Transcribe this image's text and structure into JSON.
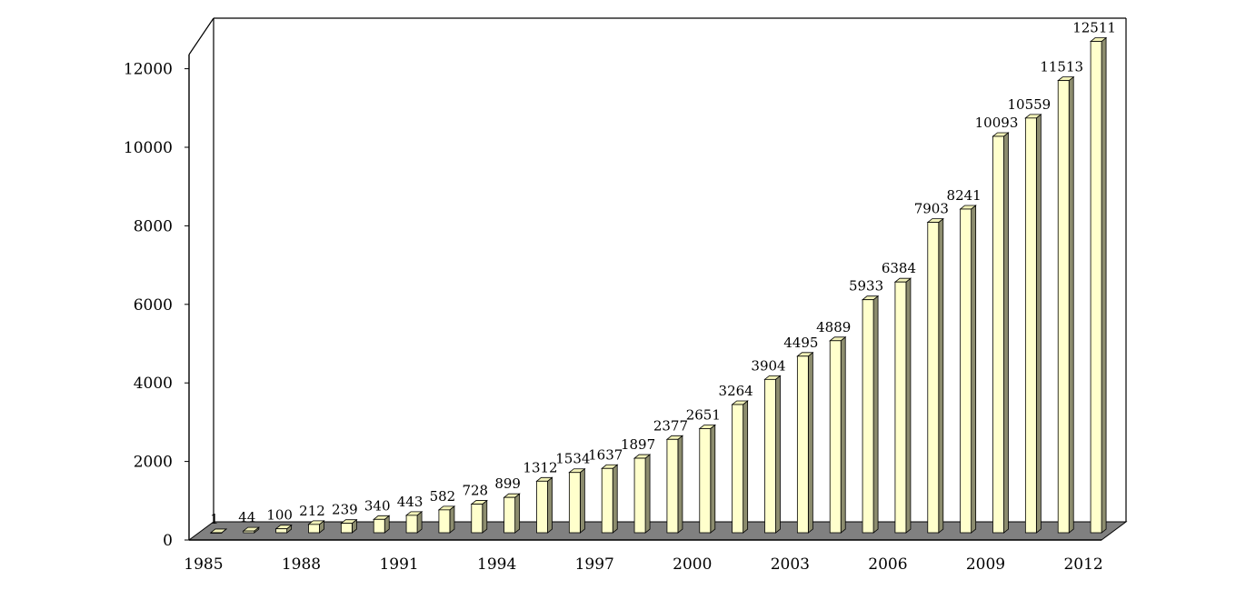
{
  "chart_data": {
    "type": "bar",
    "title": "",
    "xlabel": "",
    "ylabel": "",
    "ylim": [
      0,
      12000
    ],
    "y_ticks": [
      0,
      2000,
      4000,
      6000,
      8000,
      10000,
      12000
    ],
    "x_tick_labels": [
      "1985",
      "1988",
      "1991",
      "1994",
      "1997",
      "2000",
      "2003",
      "2006",
      "2009",
      "2012"
    ],
    "categories": [
      "1985",
      "1986",
      "1987",
      "1988",
      "1989",
      "1990",
      "1991",
      "1992",
      "1993",
      "1994",
      "1995",
      "1996",
      "1997",
      "1998",
      "1999",
      "2000",
      "2001",
      "2002",
      "2003",
      "2004",
      "2005",
      "2006",
      "2007",
      "2008",
      "2009",
      "2010",
      "2011",
      "2012"
    ],
    "values": [
      1,
      44,
      100,
      212,
      239,
      340,
      443,
      582,
      728,
      899,
      1312,
      1534,
      1637,
      1897,
      2377,
      2651,
      3264,
      3904,
      4495,
      4889,
      5933,
      6384,
      7903,
      8241,
      10093,
      10559,
      11513,
      12511
    ],
    "data_labels": [
      "1",
      "44",
      "100",
      "212",
      "239",
      "340",
      "443",
      "582",
      "728",
      "899",
      "1312",
      "1534",
      "1637",
      "1897",
      "2377",
      "2651",
      "3264",
      "3904",
      "4495",
      "4889",
      "5933",
      "6384",
      "7903",
      "8241",
      "10093",
      "10559",
      "11513",
      "12511"
    ],
    "style": "3d-column",
    "grid": false,
    "legend": "none",
    "colors": {
      "bar_front": "#FFFFCC",
      "bar_top": "#F2F2B8",
      "bar_side": "#8C8C6E",
      "floor": "#808080",
      "axis": "#000000"
    }
  }
}
